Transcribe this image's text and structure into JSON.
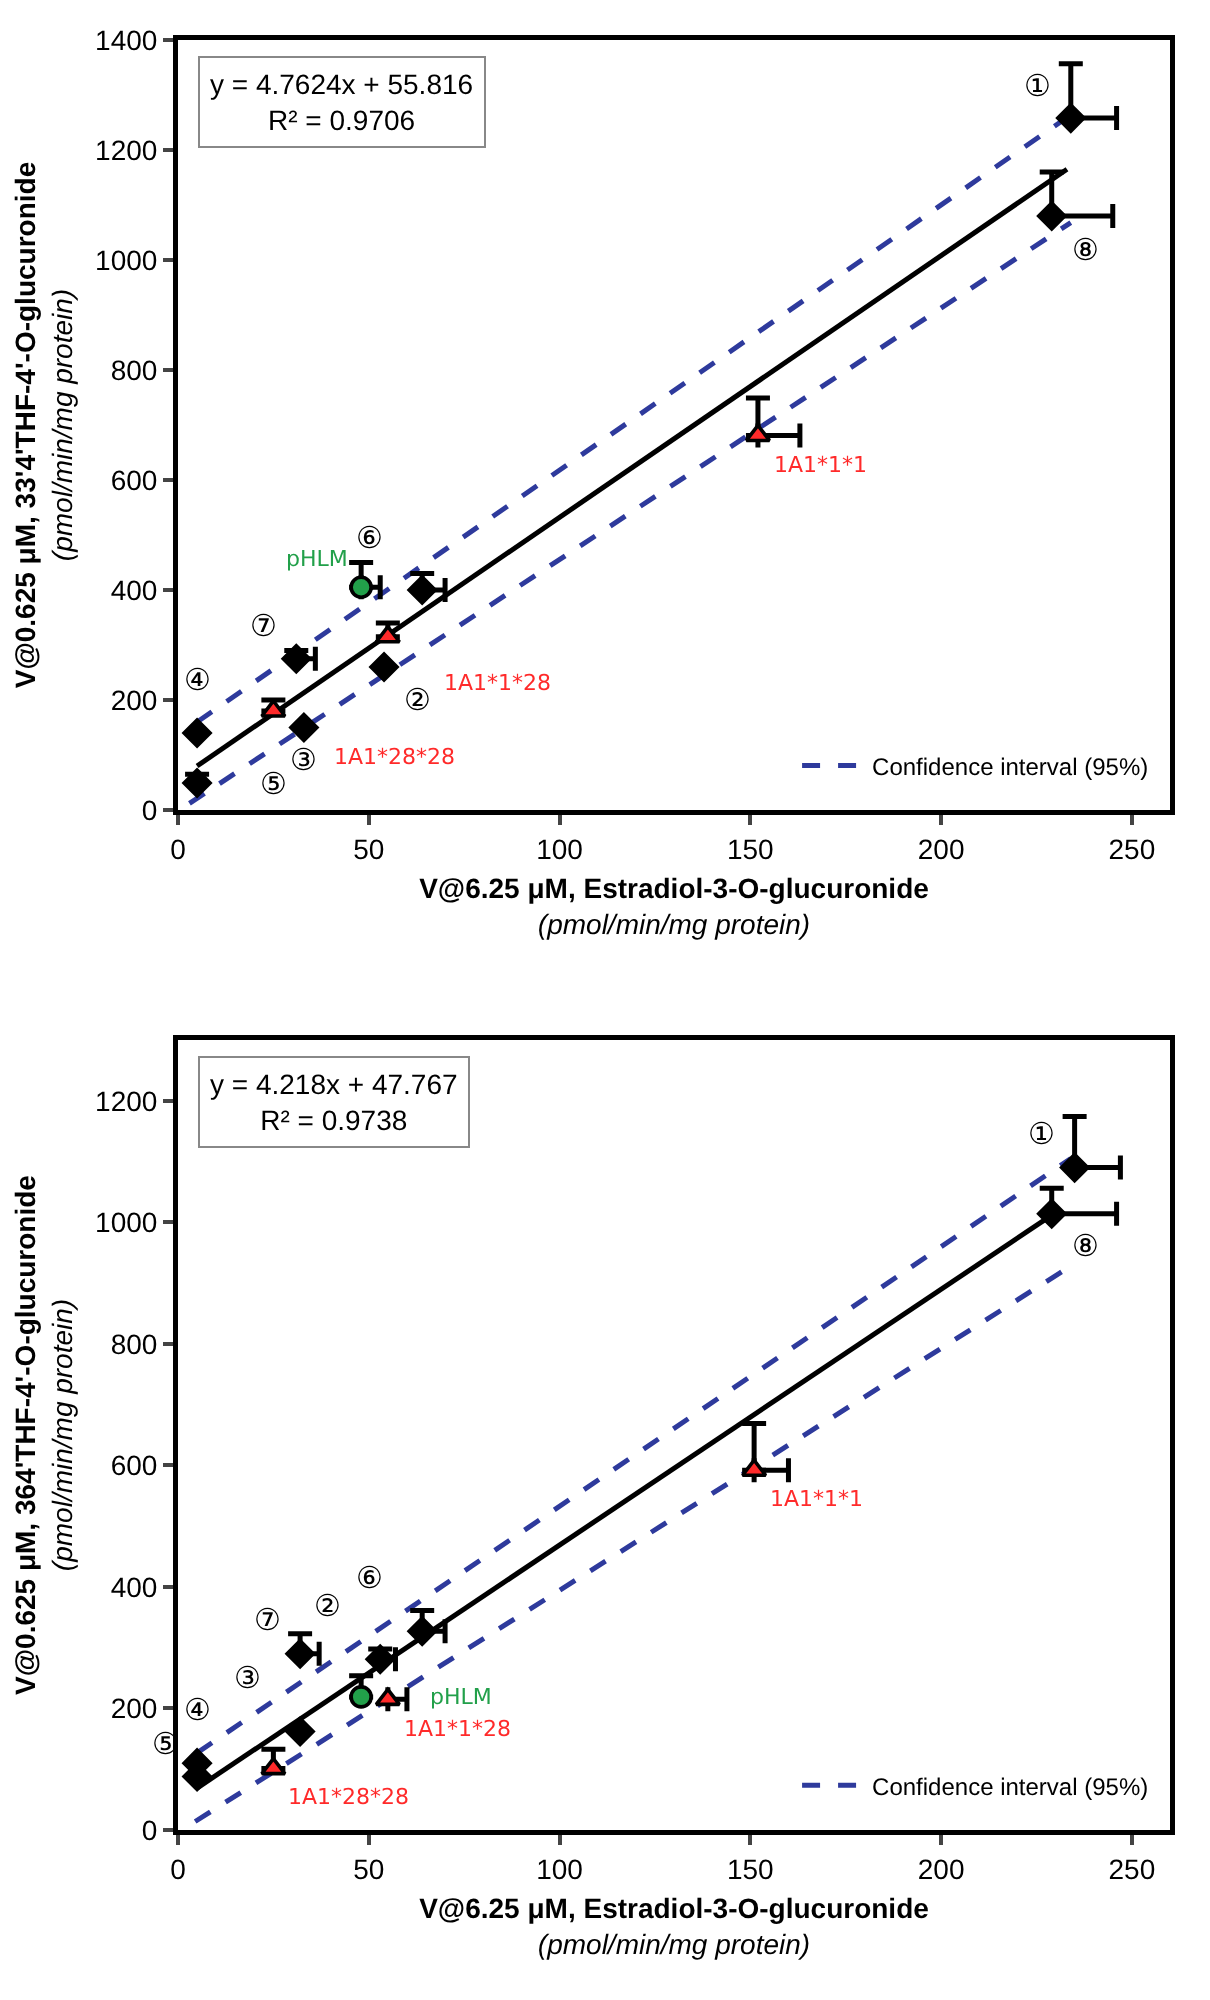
{
  "chart_data": [
    {
      "type": "scatter",
      "xlabel": "V@6.25 μM, Estradiol-3-O-glucuronide\n(pmol/min/mg protein)",
      "ylabel": "V@0.625 μM, 33'4'THF-4'-O-glucuronide\n(pmol/min/mg protein)",
      "xlim": [
        0,
        260
      ],
      "ylim": [
        0,
        1400
      ],
      "xticks": [
        0,
        50,
        100,
        150,
        200,
        250
      ],
      "yticks": [
        0,
        200,
        400,
        600,
        800,
        1000,
        1200,
        1400
      ],
      "legend": "bottom right",
      "series": [
        {
          "type": "line",
          "color": "#000000",
          "line_style": "solid",
          "x": [
            5,
            233
          ],
          "values": [
            80,
            1165
          ]
        },
        {
          "type": "line",
          "name": "Confidence interval (95%)",
          "color": "#2e3a9c",
          "line_style": "dashed",
          "x": [
            5,
            234
          ],
          "values": [
            160,
            1264
          ]
        },
        {
          "type": "line",
          "color": "#2e3a9c",
          "line_style": "dashed",
          "x": [
            3,
            234
          ],
          "values": [
            12,
            1068
          ]
        },
        {
          "color": "#000000",
          "x": [
            234,
            54,
            33,
            5,
            5,
            64,
            31,
            229
          ],
          "values": [
            1258,
            260,
            150,
            140,
            49,
            400,
            275,
            1080
          ],
          "value_labels": [
            "①",
            "②",
            "③",
            "④",
            "⑤",
            "⑥",
            "⑦",
            "⑧"
          ],
          "errors": [
            [
              1258,
              1357
            ],
            null,
            null,
            null,
            [
              49,
              65
            ],
            [
              400,
              430
            ],
            [
              275,
              290
            ],
            [
              1080,
              1160
            ]
          ],
          "xerrors": [
            [
              234,
              246
            ],
            null,
            null,
            null,
            null,
            [
              64,
              70
            ],
            [
              31,
              36
            ],
            [
              229,
              245
            ]
          ]
        },
        {
          "name": "1A1*1*1",
          "color": "#ff2a2a",
          "marker": "triangle",
          "x": [
            152
          ],
          "values": [
            681
          ],
          "errors": [
            [
              681,
              749
            ]
          ],
          "xerrors": [
            [
              152,
              163
            ]
          ]
        },
        {
          "name": "1A1*1*28",
          "color": "#ff2a2a",
          "marker": "triangle",
          "x": [
            55
          ],
          "values": [
            315
          ],
          "errors": [
            [
              315,
              340
            ]
          ],
          "xerrors": [
            null
          ]
        },
        {
          "name": "1A1*28*28",
          "color": "#ff2a2a",
          "marker": "triangle",
          "x": [
            25
          ],
          "values": [
            180
          ],
          "errors": [
            [
              180,
              200
            ]
          ],
          "xerrors": [
            null
          ]
        },
        {
          "name": "pHLM",
          "color": "#22a04a",
          "marker": "circle",
          "x": [
            48
          ],
          "values": [
            405
          ],
          "errors": [
            [
              405,
              450
            ]
          ],
          "xerrors": [
            [
              48,
              53
            ]
          ]
        }
      ],
      "annotations": [
        "y = 4.7624x + 55.816\nR² = 0.9706"
      ]
    },
    {
      "type": "scatter",
      "xlabel": "V@6.25 μM, Estradiol-3-O-glucuronide\n(pmol/min/mg protein)",
      "ylabel": "V@0.625 μM, 364'THF-4'-O-glucuronide\n(pmol/min/mg protein)",
      "xlim": [
        0,
        260
      ],
      "ylim": [
        0,
        1300
      ],
      "xticks": [
        0,
        50,
        100,
        150,
        200,
        250
      ],
      "yticks": [
        0,
        200,
        400,
        600,
        800,
        1000,
        1200
      ],
      "legend": "bottom right",
      "series": [
        {
          "type": "line",
          "color": "#000000",
          "line_style": "solid",
          "x": [
            5,
            230
          ],
          "values": [
            69,
            1016
          ]
        },
        {
          "type": "line",
          "name": "Confidence interval (95%)",
          "color": "#2e3a9c",
          "line_style": "dashed",
          "x": [
            5,
            234
          ],
          "values": [
            127,
            1105
          ]
        },
        {
          "type": "line",
          "color": "#2e3a9c",
          "line_style": "dashed",
          "x": [
            4.5,
            232
          ],
          "values": [
            14,
            920
          ]
        },
        {
          "color": "#000000",
          "x": [
            235,
            53,
            32,
            5,
            5,
            64,
            32,
            229
          ],
          "values": [
            1090,
            281,
            162,
            110,
            88,
            327,
            290,
            1014
          ],
          "value_labels": [
            "①",
            "②",
            "③",
            "④",
            "⑤",
            "⑥",
            "⑦",
            "⑧"
          ],
          "errors": [
            [
              1090,
              1174
            ],
            [
              281,
              298
            ],
            null,
            null,
            null,
            [
              327,
              361
            ],
            [
              290,
              323
            ],
            [
              1014,
              1056
            ]
          ],
          "xerrors": [
            [
              235,
              247
            ],
            [
              53,
              57
            ],
            null,
            null,
            null,
            [
              64,
              70
            ],
            [
              32,
              37
            ],
            [
              229,
              246
            ]
          ]
        },
        {
          "name": "1A1*1*1",
          "color": "#ff2a2a",
          "marker": "triangle",
          "x": [
            151
          ],
          "values": [
            592
          ],
          "errors": [
            [
              592,
              669
            ]
          ],
          "xerrors": [
            [
              151,
              160
            ]
          ]
        },
        {
          "name": "1A1*1*28",
          "color": "#ff2a2a",
          "marker": "triangle",
          "x": [
            55
          ],
          "values": [
            215
          ],
          "errors": [
            null
          ],
          "xerrors": [
            [
              55,
              60
            ]
          ]
        },
        {
          "name": "1A1*28*28",
          "color": "#ff2a2a",
          "marker": "triangle",
          "x": [
            25
          ],
          "values": [
            101
          ],
          "errors": [
            [
              101,
              133
            ]
          ],
          "xerrors": [
            null
          ]
        },
        {
          "name": "pHLM",
          "color": "#22a04a",
          "marker": "circle",
          "x": [
            48
          ],
          "values": [
            219
          ],
          "errors": [
            [
              219,
              254
            ]
          ],
          "xerrors": [
            null
          ]
        }
      ],
      "annotations": [
        "y = 4.218x + 47.767\nR² = 0.9738"
      ]
    }
  ]
}
